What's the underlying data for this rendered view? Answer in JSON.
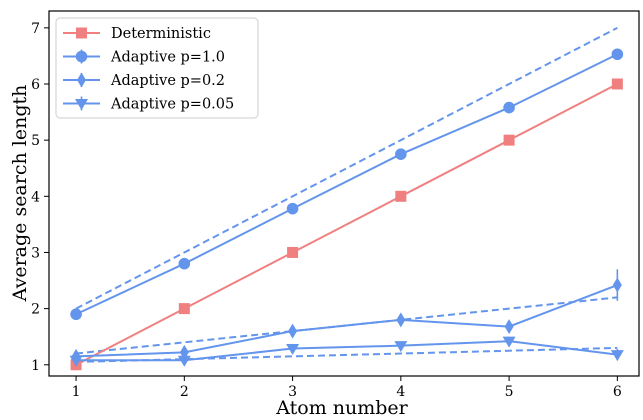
{
  "chart_data": {
    "type": "line",
    "xlabel": "Atom number",
    "ylabel": "Average search length",
    "xlim": [
      0.75,
      6.2
    ],
    "ylim": [
      0.8,
      7.3
    ],
    "xticks": [
      1,
      2,
      3,
      4,
      5,
      6
    ],
    "yticks": [
      1,
      2,
      3,
      4,
      5,
      6,
      7
    ],
    "grid": false,
    "legend_position": "top-left",
    "series": [
      {
        "name": "Deterministic",
        "color": "#f08080",
        "marker": "square",
        "x": [
          1,
          2,
          3,
          4,
          5,
          6
        ],
        "y": [
          1.0,
          2.0,
          3.0,
          4.0,
          5.0,
          6.0
        ],
        "yerr": [
          0,
          0,
          0,
          0,
          0,
          0
        ]
      },
      {
        "name": "Adaptive p=1.0",
        "color": "#6495ed",
        "marker": "circle",
        "x": [
          1,
          2,
          3,
          4,
          5,
          6
        ],
        "y": [
          1.9,
          2.8,
          3.78,
          4.75,
          5.58,
          6.53
        ],
        "yerr": [
          0.03,
          0.03,
          0.04,
          0.04,
          0.05,
          0.1
        ]
      },
      {
        "name": "Adaptive p=0.2",
        "color": "#6495ed",
        "marker": "thin_diamond",
        "x": [
          1,
          2,
          3,
          4,
          5,
          6
        ],
        "y": [
          1.15,
          1.22,
          1.6,
          1.8,
          1.68,
          2.42
        ],
        "yerr": [
          0.04,
          0.05,
          0.06,
          0.07,
          0.09,
          0.28
        ]
      },
      {
        "name": "Adaptive p=0.05",
        "color": "#6495ed",
        "marker": "triangle_down",
        "x": [
          1,
          2,
          3,
          4,
          5,
          6
        ],
        "y": [
          1.08,
          1.08,
          1.29,
          1.34,
          1.42,
          1.18
        ],
        "yerr": [
          0.02,
          0.03,
          0.05,
          0.06,
          0.08,
          0.1
        ]
      }
    ],
    "reference_lines": [
      {
        "color": "#6495ed",
        "style": "dashed",
        "x": [
          1,
          6
        ],
        "y": [
          2.0,
          7.0
        ]
      },
      {
        "color": "#6495ed",
        "style": "dashed",
        "x": [
          1,
          6
        ],
        "y": [
          1.2,
          2.2
        ]
      },
      {
        "color": "#6495ed",
        "style": "dashed",
        "x": [
          1,
          6
        ],
        "y": [
          1.05,
          1.3
        ]
      }
    ]
  }
}
